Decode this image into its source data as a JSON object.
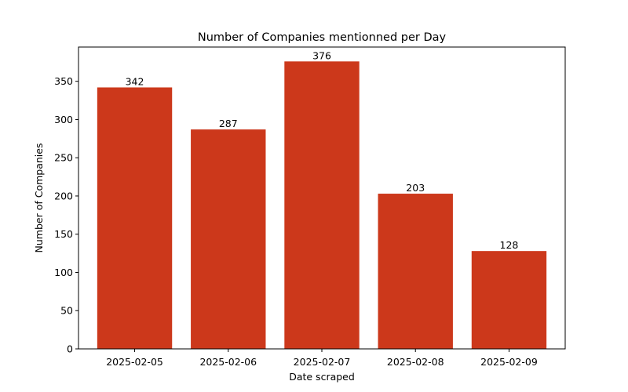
{
  "chart_data": {
    "type": "bar",
    "title": "Number of Companies mentionned per Day",
    "xlabel": "Date scraped",
    "ylabel": "Number of Companies",
    "categories": [
      "2025-02-05",
      "2025-02-06",
      "2025-02-07",
      "2025-02-08",
      "2025-02-09"
    ],
    "values": [
      342,
      287,
      376,
      203,
      128
    ],
    "data_labels": [
      "342",
      "287",
      "376",
      "203",
      "128"
    ],
    "ylim": [
      0,
      394.8
    ],
    "yticks": [
      0,
      50,
      100,
      150,
      200,
      250,
      300,
      350
    ],
    "ytick_labels": [
      "0",
      "50",
      "100",
      "150",
      "200",
      "250",
      "300",
      "350"
    ],
    "bar_color": "#cc381b",
    "grid": false,
    "legend": "none"
  }
}
